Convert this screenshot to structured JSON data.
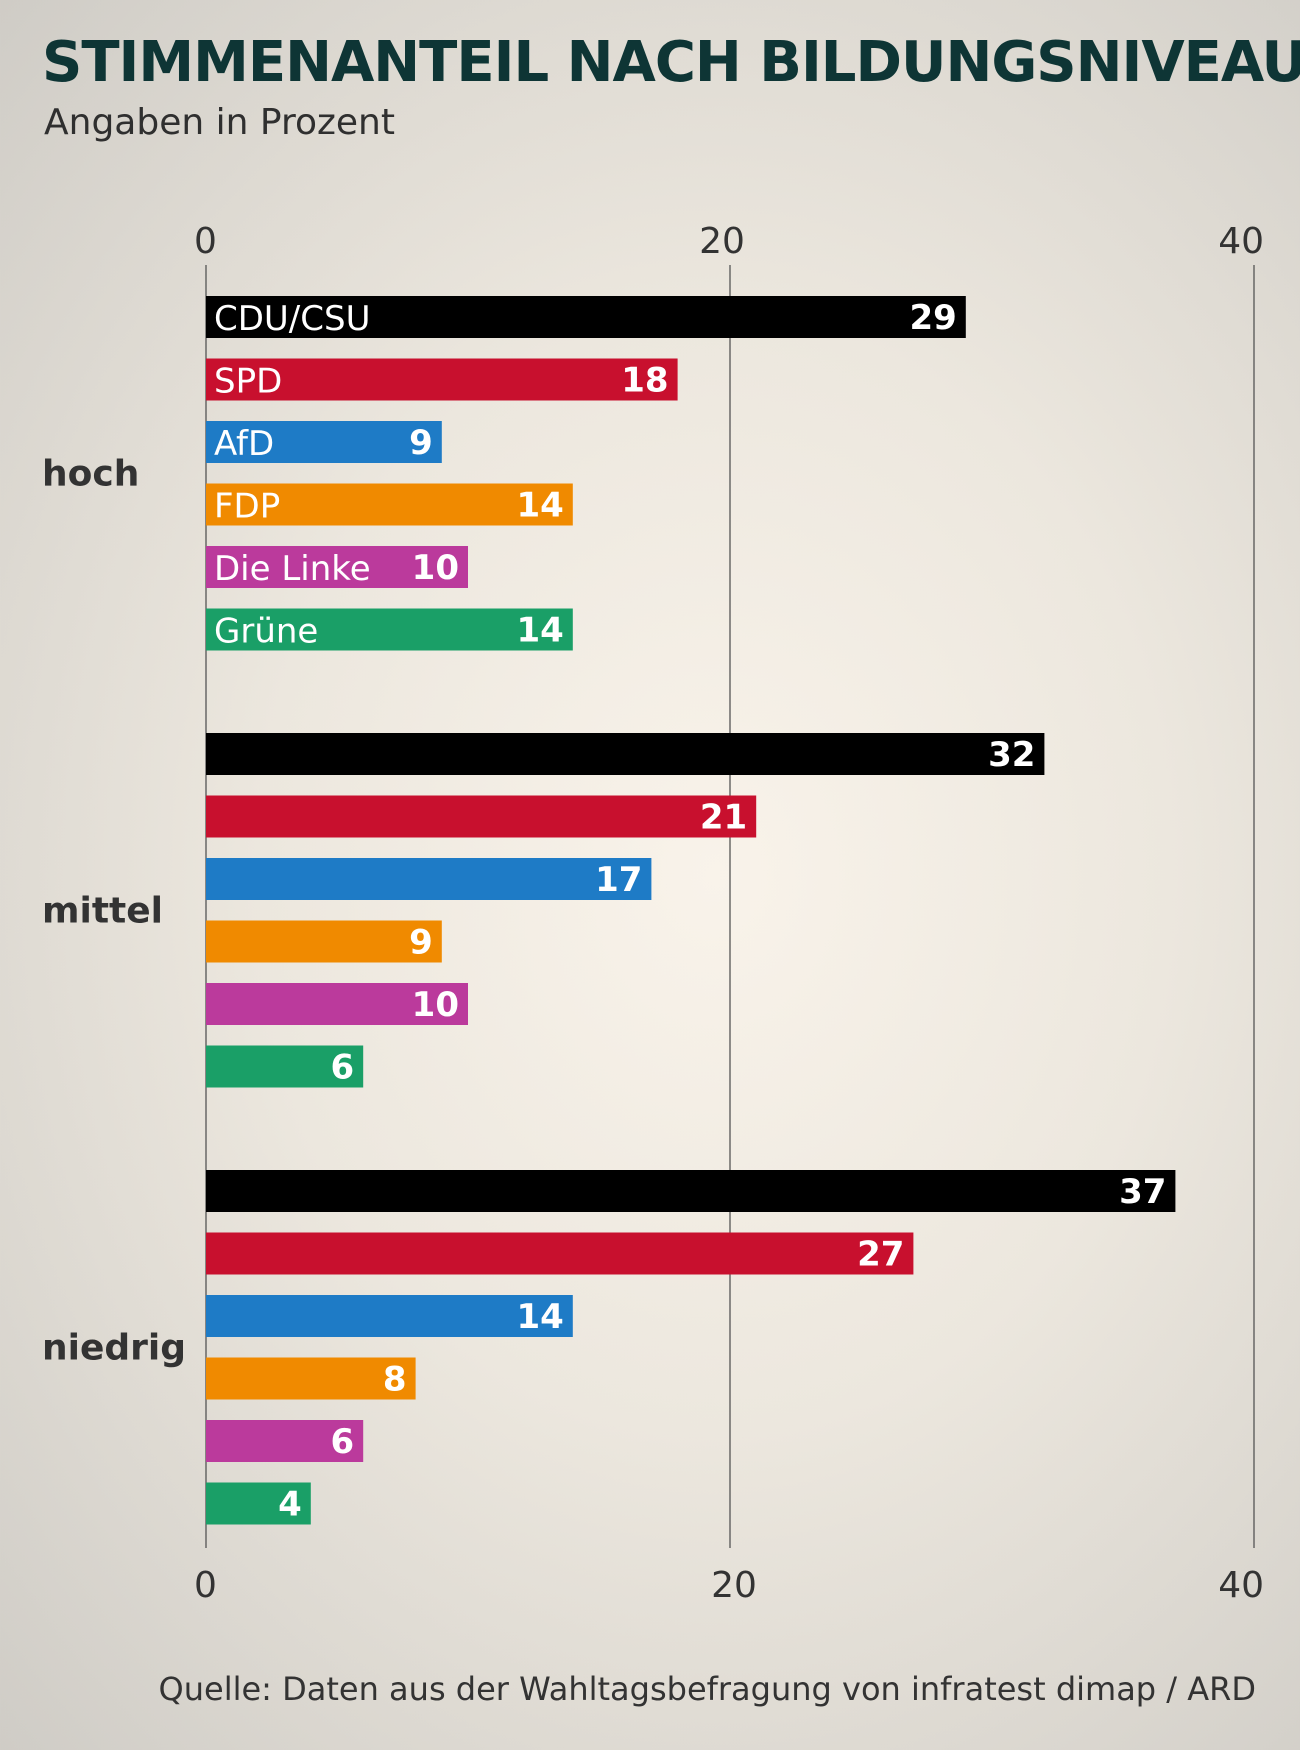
{
  "header": {
    "title": "STIMMENANTEIL NACH BILDUNGSNIVEAU",
    "subtitle": "Angaben in Prozent"
  },
  "footer": {
    "source": "Quelle: Daten aus der Wahltagsbefragung von infratest dimap / ARD"
  },
  "chart_data": {
    "type": "bar",
    "orientation": "horizontal",
    "title": "STIMMENANTEIL NACH BILDUNGSNIVEAU",
    "subtitle": "Angaben in Prozent",
    "xlim": [
      0,
      40
    ],
    "xticks": [
      0,
      20,
      40
    ],
    "grid": true,
    "categories": [
      "hoch",
      "mittel",
      "niedrig"
    ],
    "series": [
      {
        "name": "CDU/CSU",
        "color": "#000000",
        "values": [
          29,
          32,
          37
        ]
      },
      {
        "name": "SPD",
        "color": "#c8102e",
        "values": [
          18,
          21,
          27
        ]
      },
      {
        "name": "AfD",
        "color": "#1e7bc6",
        "values": [
          9,
          17,
          14
        ]
      },
      {
        "name": "FDP",
        "color": "#f08a00",
        "values": [
          14,
          9,
          8
        ]
      },
      {
        "name": "Die Linke",
        "color": "#bb3a9c",
        "values": [
          10,
          10,
          6
        ]
      },
      {
        "name": "Grüne",
        "color": "#1a9f67",
        "values": [
          14,
          6,
          4
        ]
      }
    ]
  }
}
